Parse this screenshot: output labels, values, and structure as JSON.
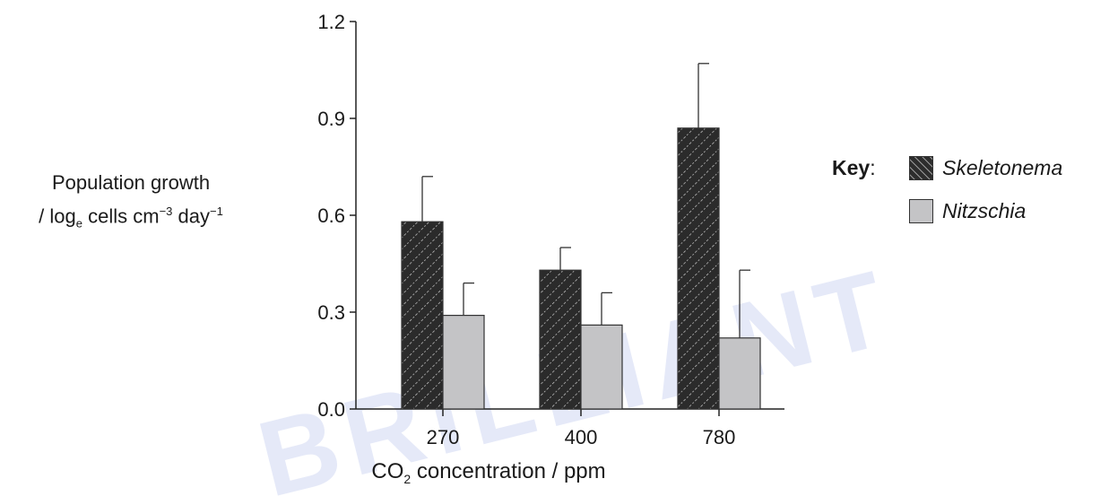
{
  "chart_data": {
    "type": "bar",
    "categories": [
      "270",
      "400",
      "780"
    ],
    "series": [
      {
        "name": "Skeletonema",
        "values": [
          0.58,
          0.43,
          0.87
        ],
        "error": [
          0.14,
          0.07,
          0.2
        ],
        "color": "#2a2a2a"
      },
      {
        "name": "Nitzschia",
        "values": [
          0.29,
          0.26,
          0.22
        ],
        "error": [
          0.1,
          0.1,
          0.21
        ],
        "color": "#c4c4c6"
      }
    ],
    "xlabel": {
      "main": "CO",
      "sub": "2",
      "rest": " concentration / ppm"
    },
    "ylabel": {
      "line1": "Population growth",
      "line2_prefix": "/ log",
      "line2_sub": "e",
      "line2_mid": " cells cm",
      "line2_sup1": "−3",
      "line2_mid2": " day",
      "line2_sup2": "−1"
    },
    "ylim": [
      0.0,
      1.2
    ],
    "yticks": [
      "0.0",
      "0.3",
      "0.6",
      "0.9",
      "1.2"
    ],
    "legend": {
      "key_label": "Key",
      "key_colon": ":",
      "position": "right"
    },
    "grid": false
  },
  "watermark": {
    "text": "BRILLIANT",
    "color": "#3355cc"
  }
}
